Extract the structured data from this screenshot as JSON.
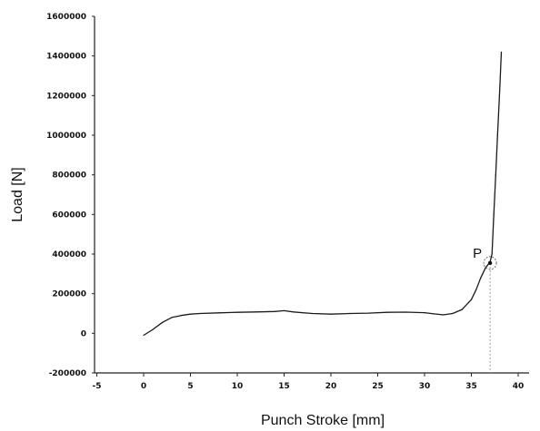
{
  "chart_data": {
    "type": "line",
    "title": "",
    "xlabel": "Punch Stroke [mm]",
    "ylabel": "Load [N]",
    "xlim": [
      -5,
      40
    ],
    "ylim": [
      -200000,
      1600000
    ],
    "x_ticks": [
      "-5",
      "0",
      "5",
      "10",
      "15",
      "20",
      "25",
      "30",
      "35",
      "40"
    ],
    "y_ticks": [
      "-200000",
      "0",
      "200000",
      "400000",
      "600000",
      "800000",
      "1000000",
      "1200000",
      "1400000",
      "1600000"
    ],
    "grid": false,
    "legend": "none",
    "series": [
      {
        "x": [
          0,
          1,
          2,
          3,
          4,
          5,
          6,
          8,
          10,
          12,
          14,
          15,
          16,
          18,
          20,
          22,
          24,
          26,
          28,
          30,
          31,
          32,
          33,
          34,
          35,
          35.5,
          36,
          36.5,
          37,
          37.2,
          37.4,
          37.6,
          37.8,
          38.0,
          38.2
        ],
        "y": [
          -10000,
          20000,
          55000,
          80000,
          90000,
          97000,
          100000,
          103000,
          106000,
          108000,
          110000,
          114000,
          108000,
          100000,
          97000,
          100000,
          102000,
          106000,
          107000,
          104000,
          98000,
          93000,
          100000,
          120000,
          170000,
          220000,
          280000,
          330000,
          360000,
          400000,
          600000,
          800000,
          1000000,
          1200000,
          1420000
        ]
      }
    ],
    "annotations": [
      {
        "label": "P",
        "x": 37.0,
        "y": 355000
      }
    ],
    "line_color": "#1a1a1a",
    "dotted_line_color": "#9a9a9a"
  }
}
